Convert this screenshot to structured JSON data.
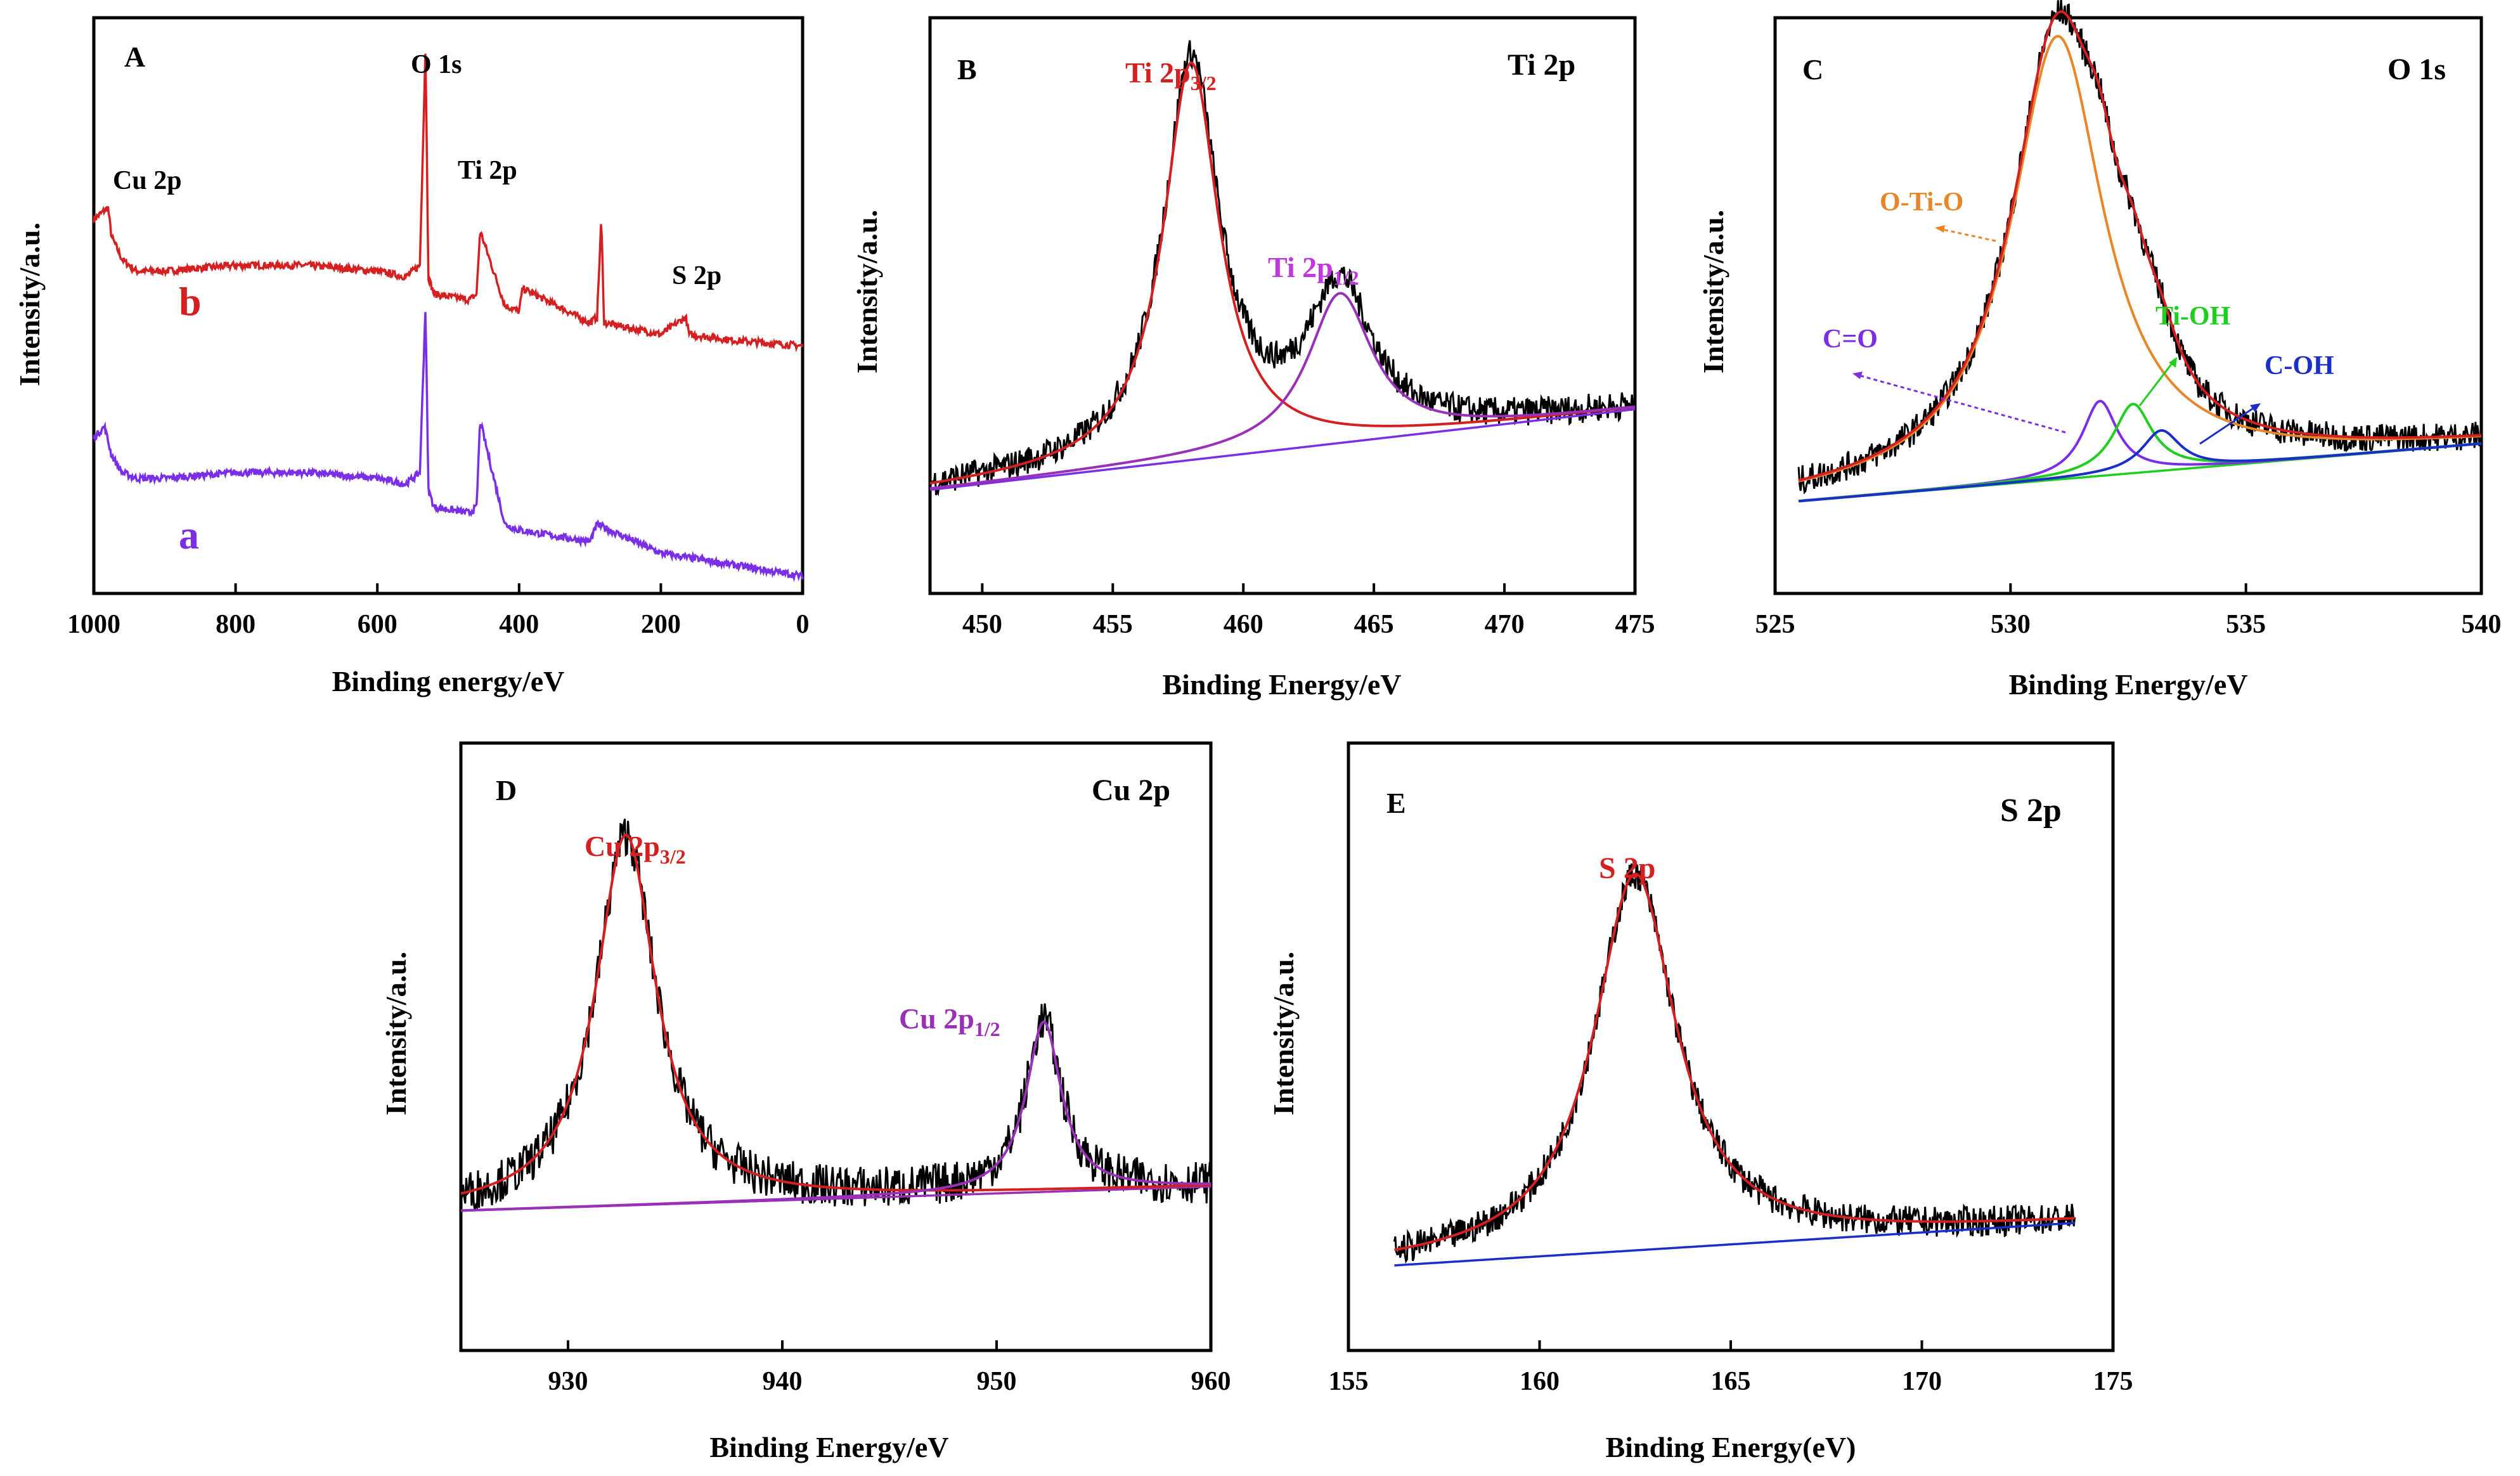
{
  "colors": {
    "black": "#000000",
    "red": "#d42020",
    "purple": "#7a2ee6",
    "violet": "#9a2fb8",
    "orange": "#e8862a",
    "green": "#1fcf1f",
    "blue": "#1a2fc8",
    "lightblue": "#8fb4ff"
  },
  "chart_data": [
    {
      "id": "A",
      "type": "line",
      "panel_label": "A",
      "title": "",
      "xlabel": "Binding energy/eV",
      "ylabel": "Intensity/a.u.",
      "xlim": [
        1000,
        0
      ],
      "ylim": [
        0,
        100
      ],
      "xticks": [
        1000,
        800,
        600,
        400,
        200,
        0
      ],
      "xtick_labels": [
        "1000",
        "800",
        "600",
        "400",
        "200",
        "0"
      ],
      "annotations": [
        "Cu 2p",
        "O 1s",
        "Ti 2p",
        "S 2p"
      ],
      "series": [
        {
          "name": "b",
          "color": "#d42020",
          "offset": 43,
          "x": [
            1000,
            980,
            975,
            960,
            940,
            900,
            800,
            700,
            600,
            560,
            540,
            532,
            528,
            520,
            470,
            460,
            455,
            420,
            400,
            395,
            300,
            290,
            284,
            280,
            200,
            165,
            160,
            100,
            0
          ],
          "y": [
            22,
            24,
            19,
            15,
            13,
            13,
            14,
            14,
            13,
            12,
            14,
            52,
            12,
            9,
            8,
            9,
            20,
            7,
            6,
            10,
            4,
            5,
            22,
            4,
            2,
            5,
            2,
            1,
            0
          ]
        },
        {
          "name": "a",
          "color": "#7a2ee6",
          "offset": 3,
          "x": [
            1000,
            985,
            975,
            960,
            940,
            900,
            800,
            700,
            600,
            560,
            540,
            532,
            528,
            520,
            470,
            460,
            455,
            420,
            400,
            300,
            290,
            200,
            100,
            0
          ],
          "y": [
            24,
            26,
            21,
            18,
            17,
            17,
            18,
            18,
            17,
            16,
            18,
            47,
            15,
            12,
            11,
            12,
            27,
            9,
            8,
            6,
            9,
            4,
            2,
            0
          ]
        }
      ],
      "series_labels": [
        "b",
        "a"
      ]
    },
    {
      "id": "B",
      "type": "line",
      "panel_label": "B",
      "title": "Ti 2p",
      "xlabel": "Binding Energy/eV",
      "ylabel": "Intensity/a.u.",
      "xlim": [
        448,
        475
      ],
      "ylim": [
        0,
        100
      ],
      "xticks": [
        450,
        455,
        460,
        465,
        470,
        475
      ],
      "xtick_labels": [
        "450",
        "455",
        "460",
        "465",
        "470",
        "475"
      ],
      "annotations": [
        "Ti 2p3/2",
        "Ti 2p1/2"
      ],
      "peaks": [
        {
          "label": "Ti 2p3/2",
          "center": 458.0,
          "height": 69,
          "width": 1.3,
          "color": "#d42020"
        },
        {
          "label": "Ti 2p1/2",
          "center": 463.7,
          "height": 26,
          "width": 1.5,
          "color": "#9a2fb8"
        }
      ],
      "baseline": {
        "x": [
          448,
          475
        ],
        "y": [
          18,
          32
        ],
        "color": "#7a2ee6"
      },
      "noise": 2.5
    },
    {
      "id": "C",
      "type": "line",
      "panel_label": "C",
      "title": "O 1s",
      "xlabel": "Binding Energy/eV",
      "ylabel": "Intensity/a.u.",
      "xlim": [
        525,
        540
      ],
      "ylim": [
        0,
        100
      ],
      "xticks": [
        525,
        530,
        535,
        540
      ],
      "xtick_labels": [
        "525",
        "530",
        "535",
        "540"
      ],
      "annotations": [
        "O-Ti-O",
        "Ti-OH",
        "C=O",
        "C-OH"
      ],
      "peaks": [
        {
          "label": "O-Ti-O",
          "center": 531.0,
          "height": 77,
          "width": 1.2,
          "color": "#e8862a"
        },
        {
          "label": "C=O",
          "center": 531.9,
          "height": 13,
          "width": 0.45,
          "color": "#7a2ee6"
        },
        {
          "label": "Ti-OH",
          "center": 532.6,
          "height": 12,
          "width": 0.5,
          "color": "#1fcf1f"
        },
        {
          "label": "C-OH",
          "center": 533.2,
          "height": 7,
          "width": 0.5,
          "color": "#1a2fc8"
        }
      ],
      "baseline": {
        "x": [
          525.5,
          540
        ],
        "y": [
          16,
          26
        ],
        "color": "#1fcf1f"
      },
      "envelope_color": "#d42020",
      "noise": 2.5
    },
    {
      "id": "D",
      "type": "line",
      "panel_label": "D",
      "title": "Cu 2p",
      "xlabel": "Binding Energy/eV",
      "ylabel": "Intensity/a.u.",
      "xlim": [
        925,
        960
      ],
      "ylim": [
        0,
        100
      ],
      "xticks": [
        930,
        940,
        950,
        960
      ],
      "xtick_labels": [
        "930",
        "940",
        "950",
        "960"
      ],
      "annotations": [
        "Cu 2p3/2",
        "Cu 2p1/2"
      ],
      "peaks": [
        {
          "label": "Cu 2p3/2",
          "center": 932.7,
          "height": 61,
          "width": 1.7,
          "color": "#d42020"
        },
        {
          "label": "Cu 2p1/2",
          "center": 952.2,
          "height": 28,
          "width": 1.0,
          "color": "#9a2fb8"
        }
      ],
      "baseline": {
        "x": [
          925,
          960
        ],
        "y": [
          23,
          27
        ],
        "color": "#9a2fb8"
      },
      "noise": 3.5
    },
    {
      "id": "E",
      "type": "line",
      "panel_label": "E",
      "title": "S 2p",
      "xlabel": "Binding Energy(eV)",
      "ylabel": "Intensity/a.u.",
      "xlim": [
        155,
        175
      ],
      "ylim": [
        0,
        100
      ],
      "xticks": [
        155,
        160,
        165,
        170,
        175
      ],
      "xtick_labels": [
        "155",
        "160",
        "165",
        "170",
        "175"
      ],
      "annotations": [
        "S 2p"
      ],
      "peaks": [
        {
          "label": "S 2p",
          "center": 162.5,
          "height": 62,
          "width": 1.3,
          "color": "#d42020"
        }
      ],
      "baseline": {
        "x": [
          156.2,
          174
        ],
        "y": [
          14,
          21
        ],
        "color": "#1a2fc8"
      },
      "noise": 2.5
    }
  ]
}
